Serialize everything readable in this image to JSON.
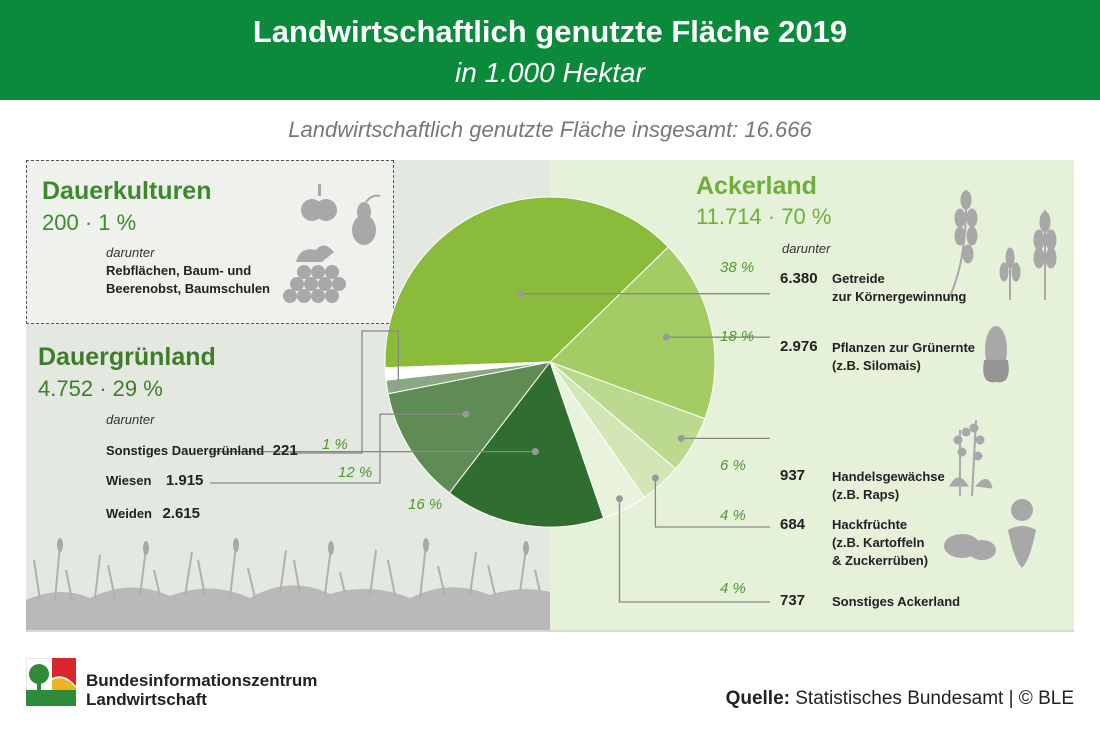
{
  "header": {
    "title": "Landwirtschaftlich genutzte Fläche 2019",
    "unit": "in 1.000 Hektar"
  },
  "subtitle": "Landwirtschaftlich genutzte Fläche insgesamt: 16.666",
  "colors": {
    "header_green": "#0a8a3a",
    "ackerland_text": "#6fae3a",
    "dauergruenland_text": "#3f7d2a",
    "dauerkulturen_text": "#3d8a2e"
  },
  "categories": {
    "dauerkulturen": {
      "title": "Dauerkulturen",
      "value": "200",
      "share": "1 %",
      "sep": "·",
      "darunter": "darunter",
      "detail": [
        "Rebflächen, Baum- und",
        "Beerenobst, Baumschulen"
      ],
      "icons": [
        "apple-icon",
        "pear-icon",
        "grapes-icon"
      ]
    },
    "dauergruenland": {
      "title": "Dauergrünland",
      "value": "4.752",
      "share": "29 %",
      "sep": "·",
      "darunter": "darunter",
      "items": [
        {
          "label": "Sonstiges Dauergrünland",
          "value": "221",
          "pct": "1 %"
        },
        {
          "label": "Wiesen",
          "value": "1.915",
          "pct": "12 %"
        },
        {
          "label": "Weiden",
          "value": "2.615",
          "pct": "16 %"
        }
      ],
      "icons": [
        "grass-silhouette-icon"
      ]
    },
    "ackerland": {
      "title": "Ackerland",
      "value": "11.714",
      "share": "70 %",
      "sep": "·",
      "darunter": "darunter",
      "items": [
        {
          "pct": "38 %",
          "value": "6.380",
          "label": [
            "Getreide",
            "zur Körnergewinnung"
          ]
        },
        {
          "pct": "18 %",
          "value": "2.976",
          "label": [
            "Pflanzen zur Grünernte",
            "(z.B. Silomais)"
          ]
        },
        {
          "pct": "6 %",
          "value": "937",
          "label": [
            "Handelsgewächse",
            "(z.B. Raps)"
          ]
        },
        {
          "pct": "4 %",
          "value": "684",
          "label": [
            "Hackfrüchte",
            "(z.B. Kartoffeln",
            "& Zuckerrüben)"
          ]
        },
        {
          "pct": "4 %",
          "value": "737",
          "label": [
            "Sonstiges Ackerland"
          ]
        }
      ],
      "icons": [
        "wheat-icon",
        "corn-icon",
        "rapeseed-icon",
        "beet-potato-icon"
      ]
    }
  },
  "logo": {
    "line1": "Bundesinformationszentrum",
    "line2": "Landwirtschaft"
  },
  "source": {
    "label": "Quelle:",
    "text": " Statistisches Bundesamt | © BLE"
  },
  "chart_data": {
    "type": "pie",
    "title": "Landwirtschaftlich genutzte Fläche 2019",
    "unit": "in 1.000 Hektar",
    "total": 16666,
    "slices": [
      {
        "name": "Getreide zur Körnergewinnung",
        "value": 6380,
        "group": "Ackerland",
        "color": "#8bbb3a"
      },
      {
        "name": "Pflanzen zur Grünernte",
        "value": 2976,
        "group": "Ackerland",
        "color": "#a4cc64"
      },
      {
        "name": "Handelsgewächse",
        "value": 937,
        "group": "Ackerland",
        "color": "#bcd990"
      },
      {
        "name": "Hackfrüchte",
        "value": 684,
        "group": "Ackerland",
        "color": "#d2e6b6"
      },
      {
        "name": "Sonstiges Ackerland",
        "value": 737,
        "group": "Ackerland",
        "color": "#e8f2dc"
      },
      {
        "name": "Weiden",
        "value": 2615,
        "group": "Dauergrünland",
        "color": "#2f6e2f"
      },
      {
        "name": "Wiesen",
        "value": 1915,
        "group": "Dauergrünland",
        "color": "#5f8c55"
      },
      {
        "name": "Sonstiges Dauergrünland",
        "value": 221,
        "group": "Dauergrünland",
        "color": "#8aa982"
      },
      {
        "name": "Dauerkulturen",
        "value": 200,
        "group": "Dauerkulturen",
        "color": "#ffffff"
      }
    ]
  }
}
